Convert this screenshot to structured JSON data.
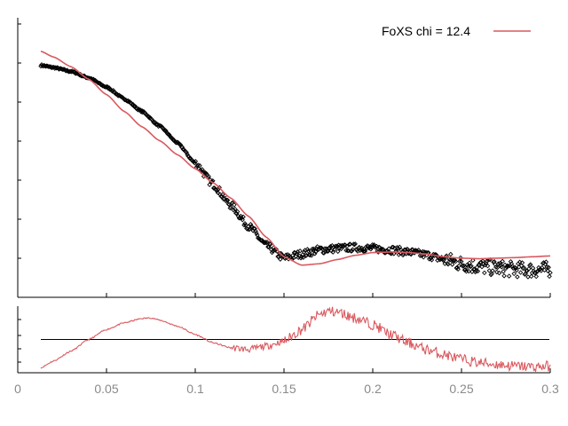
{
  "chart_data": [
    {
      "type": "scatter",
      "panel": "main",
      "title": "",
      "xlabel": "",
      "ylabel": "",
      "xlim": [
        0,
        0.3
      ],
      "ylim": [
        0,
        1
      ],
      "yticks_labeled": false,
      "grid": false,
      "legend": {
        "placement": "top-right",
        "entries": [
          {
            "label": "FoXS chi = 12.4",
            "series": "fit"
          }
        ]
      },
      "series": [
        {
          "kind": "points",
          "marker": "diamond",
          "color": "#000000",
          "x": [
            0.013,
            0.02,
            0.03,
            0.04,
            0.05,
            0.06,
            0.07,
            0.08,
            0.09,
            0.1,
            0.11,
            0.12,
            0.13,
            0.14,
            0.15,
            0.16,
            0.17,
            0.18,
            0.19,
            0.2,
            0.21,
            0.22,
            0.23,
            0.24,
            0.25,
            0.26,
            0.27,
            0.28,
            0.29,
            0.3
          ],
          "y": [
            0.83,
            0.822,
            0.808,
            0.785,
            0.752,
            0.71,
            0.665,
            0.612,
            0.552,
            0.48,
            0.405,
            0.33,
            0.255,
            0.185,
            0.14,
            0.155,
            0.17,
            0.175,
            0.178,
            0.175,
            0.17,
            0.162,
            0.152,
            0.135,
            0.12,
            0.11,
            0.105,
            0.1,
            0.098,
            0.1
          ]
        },
        {
          "name": "FoXS chi = 12.4",
          "kind": "line",
          "color": "#d9595f",
          "x": [
            0.013,
            0.02,
            0.03,
            0.04,
            0.05,
            0.06,
            0.07,
            0.08,
            0.09,
            0.1,
            0.11,
            0.12,
            0.13,
            0.14,
            0.15,
            0.16,
            0.17,
            0.18,
            0.19,
            0.2,
            0.21,
            0.22,
            0.23,
            0.24,
            0.25,
            0.26,
            0.27,
            0.28,
            0.29,
            0.3
          ],
          "y": [
            0.88,
            0.86,
            0.825,
            0.78,
            0.725,
            0.665,
            0.61,
            0.56,
            0.51,
            0.46,
            0.41,
            0.355,
            0.29,
            0.215,
            0.145,
            0.115,
            0.12,
            0.135,
            0.15,
            0.16,
            0.162,
            0.16,
            0.155,
            0.145,
            0.14,
            0.138,
            0.14,
            0.142,
            0.145,
            0.148
          ]
        }
      ]
    },
    {
      "type": "line",
      "panel": "residuals",
      "title": "",
      "xlabel": "",
      "ylabel": "",
      "xlim": [
        0,
        0.3
      ],
      "ylim": [
        -1,
        1
      ],
      "yticks_labeled": false,
      "xticks": [
        0,
        0.05,
        0.1,
        0.15,
        0.2,
        0.25,
        0.3
      ],
      "xtick_labels": [
        "0",
        "0.05",
        "0.1",
        "0.15",
        "0.2",
        "0.25",
        "0.3"
      ],
      "reference_line": 0,
      "series": [
        {
          "kind": "line",
          "color": "#d9595f",
          "x": [
            0.013,
            0.02,
            0.03,
            0.04,
            0.05,
            0.06,
            0.07,
            0.075,
            0.08,
            0.09,
            0.1,
            0.11,
            0.12,
            0.13,
            0.14,
            0.15,
            0.16,
            0.17,
            0.175,
            0.18,
            0.19,
            0.2,
            0.21,
            0.22,
            0.23,
            0.24,
            0.25,
            0.26,
            0.27,
            0.28,
            0.29,
            0.3
          ],
          "y": [
            -0.85,
            -0.65,
            -0.35,
            0.0,
            0.3,
            0.5,
            0.63,
            0.65,
            0.58,
            0.4,
            0.15,
            -0.1,
            -0.25,
            -0.3,
            -0.2,
            -0.05,
            0.3,
            0.75,
            0.85,
            0.82,
            0.65,
            0.45,
            0.15,
            -0.1,
            -0.3,
            -0.45,
            -0.6,
            -0.7,
            -0.75,
            -0.8,
            -0.82,
            -0.8
          ]
        }
      ]
    }
  ]
}
